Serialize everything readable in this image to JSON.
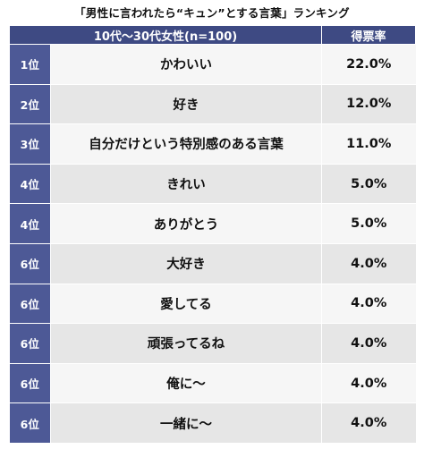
{
  "title": "「男性に言われたら“キュン”とする言葉」ランキング",
  "header": {
    "group_label": "10代〜30代女性(n=100)",
    "rate_label": "得票率"
  },
  "rows": [
    {
      "rank": "1位",
      "word": "かわいい",
      "rate": "22.0%"
    },
    {
      "rank": "2位",
      "word": "好き",
      "rate": "12.0%"
    },
    {
      "rank": "3位",
      "word": "自分だけという特別感のある言葉",
      "rate": "11.0%"
    },
    {
      "rank": "4位",
      "word": "きれい",
      "rate": "5.0%"
    },
    {
      "rank": "4位",
      "word": "ありがとう",
      "rate": "5.0%"
    },
    {
      "rank": "6位",
      "word": "大好き",
      "rate": "4.0%"
    },
    {
      "rank": "6位",
      "word": "愛してる",
      "rate": "4.0%"
    },
    {
      "rank": "6位",
      "word": "頑張ってるね",
      "rate": "4.0%"
    },
    {
      "rank": "6位",
      "word": "俺に〜",
      "rate": "4.0%"
    },
    {
      "rank": "6位",
      "word": "一緒に〜",
      "rate": "4.0%"
    }
  ],
  "colors": {
    "header_bg": "#3e4a83",
    "rank_bg": "#4d5996",
    "row_light": "#f6f6f6",
    "row_dark": "#e6e6e6"
  }
}
